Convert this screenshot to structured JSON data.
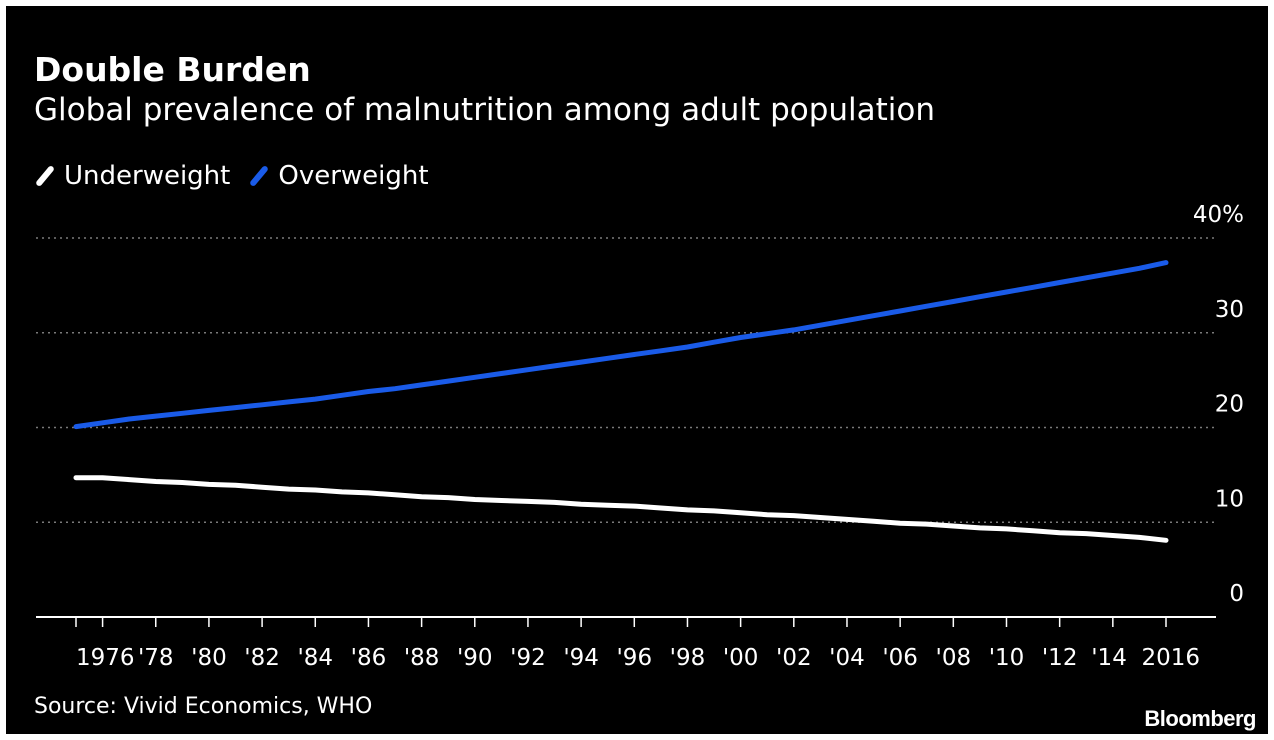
{
  "title": "Double Burden",
  "subtitle": "Global prevalence of malnutrition among adult population",
  "source": "Source: Vivid Economics, WHO",
  "brand": "Bloomberg",
  "colors": {
    "background": "#000000",
    "underweight": "#ffffff",
    "overweight": "#1a5be8",
    "grid": "#7a7a7a",
    "axis": "#ffffff"
  },
  "chart_data": {
    "type": "line",
    "title": "Double Burden",
    "subtitle": "Global prevalence of malnutrition among adult population",
    "xlabel": "",
    "ylabel": "",
    "legend": "top-left",
    "grid": true,
    "xlim": [
      1974,
      2017
    ],
    "ylim": [
      0,
      40
    ],
    "y_ticks": [
      {
        "value": 0,
        "label": "0"
      },
      {
        "value": 10,
        "label": "10"
      },
      {
        "value": 20,
        "label": "20"
      },
      {
        "value": 30,
        "label": "30"
      },
      {
        "value": 40,
        "label": "40%"
      }
    ],
    "x_ticks": [
      {
        "value": 1975,
        "label": ""
      },
      {
        "value": 1976,
        "label": "1976"
      },
      {
        "value": 1978,
        "label": "'78"
      },
      {
        "value": 1980,
        "label": "'80"
      },
      {
        "value": 1982,
        "label": "'82"
      },
      {
        "value": 1984,
        "label": "'84"
      },
      {
        "value": 1986,
        "label": "'86"
      },
      {
        "value": 1988,
        "label": "'88"
      },
      {
        "value": 1990,
        "label": "'90"
      },
      {
        "value": 1992,
        "label": "'92"
      },
      {
        "value": 1994,
        "label": "'94"
      },
      {
        "value": 1996,
        "label": "'96"
      },
      {
        "value": 1998,
        "label": "'98"
      },
      {
        "value": 2000,
        "label": "'00"
      },
      {
        "value": 2002,
        "label": "'02"
      },
      {
        "value": 2004,
        "label": "'04"
      },
      {
        "value": 2006,
        "label": "'06"
      },
      {
        "value": 2008,
        "label": "'08"
      },
      {
        "value": 2010,
        "label": "'10"
      },
      {
        "value": 2012,
        "label": "'12"
      },
      {
        "value": 2014,
        "label": "'14"
      },
      {
        "value": 2016,
        "label": "2016"
      }
    ],
    "x": [
      1975,
      1976,
      1977,
      1978,
      1979,
      1980,
      1981,
      1982,
      1983,
      1984,
      1985,
      1986,
      1987,
      1988,
      1989,
      1990,
      1991,
      1992,
      1993,
      1994,
      1995,
      1996,
      1997,
      1998,
      1999,
      2000,
      2001,
      2002,
      2003,
      2004,
      2005,
      2006,
      2007,
      2008,
      2009,
      2010,
      2011,
      2012,
      2013,
      2014,
      2015,
      2016
    ],
    "series": [
      {
        "name": "Underweight",
        "color": "#ffffff",
        "values": [
          14.7,
          14.7,
          14.5,
          14.3,
          14.2,
          14.0,
          13.9,
          13.7,
          13.5,
          13.4,
          13.2,
          13.1,
          12.9,
          12.7,
          12.6,
          12.4,
          12.3,
          12.2,
          12.1,
          11.9,
          11.8,
          11.7,
          11.5,
          11.3,
          11.2,
          11.0,
          10.8,
          10.7,
          10.5,
          10.3,
          10.1,
          9.9,
          9.8,
          9.6,
          9.4,
          9.3,
          9.1,
          8.9,
          8.8,
          8.6,
          8.4,
          8.1
        ]
      },
      {
        "name": "Overweight",
        "color": "#1a5be8",
        "values": [
          20.1,
          20.5,
          20.9,
          21.2,
          21.5,
          21.8,
          22.1,
          22.4,
          22.7,
          23.0,
          23.4,
          23.8,
          24.1,
          24.5,
          24.9,
          25.3,
          25.7,
          26.1,
          26.5,
          26.9,
          27.3,
          27.7,
          28.1,
          28.5,
          29.0,
          29.5,
          29.9,
          30.3,
          30.8,
          31.3,
          31.8,
          32.3,
          32.8,
          33.3,
          33.8,
          34.3,
          34.8,
          35.3,
          35.8,
          36.3,
          36.8,
          37.4
        ]
      }
    ]
  }
}
